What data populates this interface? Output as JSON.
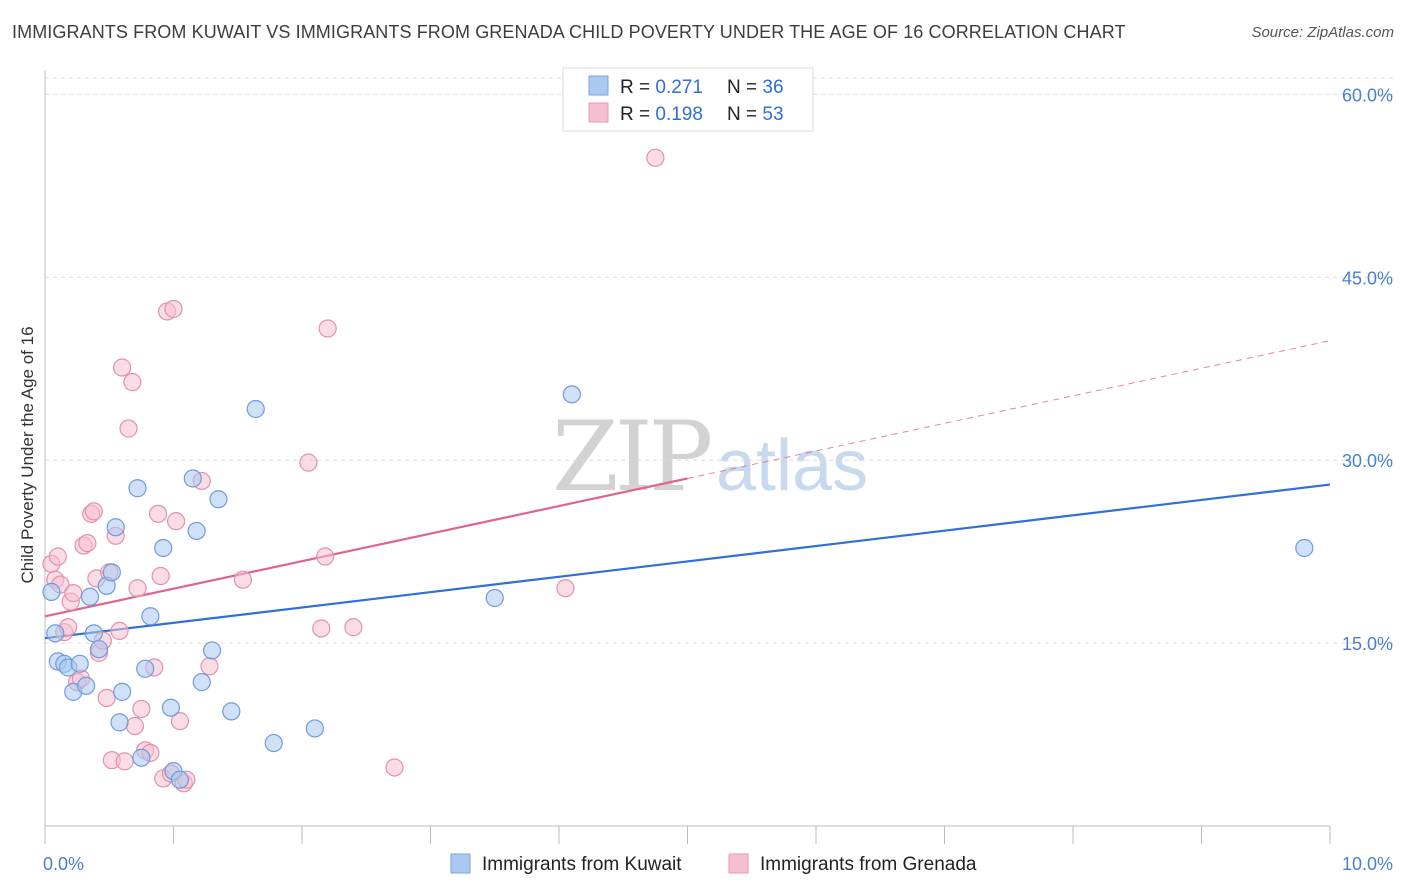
{
  "title": "IMMIGRANTS FROM KUWAIT VS IMMIGRANTS FROM GRENADA CHILD POVERTY UNDER THE AGE OF 16 CORRELATION CHART",
  "source": "Source: ZipAtlas.com",
  "watermark": {
    "zip": "ZIP",
    "atlas": "atlas"
  },
  "colors": {
    "kuwait": "#2f6fd6",
    "grenada": "#e0638f",
    "kuwait_fill": "#aac8f0",
    "grenada_fill": "#f6bfd0",
    "grid": "#d8d8d8"
  },
  "legend": {
    "rows": [
      {
        "r_label": "R = ",
        "r_value": "0.271",
        "n_label": "N = ",
        "n_value": "36"
      },
      {
        "r_label": "R = ",
        "r_value": "0.198",
        "n_label": "N = ",
        "n_value": "53"
      }
    ]
  },
  "bottom_legend": [
    "Immigrants from Kuwait",
    "Immigrants from Grenada"
  ],
  "chart_data": {
    "type": "scatter",
    "title": "IMMIGRANTS FROM KUWAIT VS IMMIGRANTS FROM GRENADA CHILD POVERTY UNDER THE AGE OF 16 CORRELATION CHART",
    "xlabel": "",
    "ylabel": "Child Poverty Under the Age of 16",
    "xlim": [
      0,
      10
    ],
    "ylim": [
      0,
      62
    ],
    "x_tick_labels": [
      "0.0%",
      "10.0%"
    ],
    "y_ticks": [
      15,
      30,
      45,
      60
    ],
    "y_tick_labels": [
      "15.0%",
      "30.0%",
      "45.0%",
      "60.0%"
    ],
    "series": [
      {
        "name": "Immigrants from Kuwait",
        "R": 0.271,
        "N": 36,
        "trend": {
          "x0": 0,
          "y0": 15.4,
          "x1": 10,
          "y1": 28.0,
          "dashed_from": null
        },
        "points": [
          [
            0.05,
            19.2
          ],
          [
            0.08,
            15.8
          ],
          [
            0.1,
            13.5
          ],
          [
            0.15,
            13.3
          ],
          [
            0.18,
            13.0
          ],
          [
            0.22,
            11.0
          ],
          [
            0.27,
            13.3
          ],
          [
            0.32,
            11.5
          ],
          [
            0.35,
            18.8
          ],
          [
            0.38,
            15.8
          ],
          [
            0.42,
            14.5
          ],
          [
            0.48,
            19.7
          ],
          [
            0.52,
            20.8
          ],
          [
            0.55,
            24.5
          ],
          [
            0.58,
            8.5
          ],
          [
            0.6,
            11.0
          ],
          [
            0.72,
            27.7
          ],
          [
            0.75,
            5.6
          ],
          [
            0.78,
            12.9
          ],
          [
            0.82,
            17.2
          ],
          [
            0.92,
            22.8
          ],
          [
            0.98,
            9.7
          ],
          [
            1.0,
            4.5
          ],
          [
            1.05,
            3.8
          ],
          [
            1.15,
            28.5
          ],
          [
            1.18,
            24.2
          ],
          [
            1.22,
            11.8
          ],
          [
            1.3,
            14.4
          ],
          [
            1.35,
            26.8
          ],
          [
            1.45,
            9.4
          ],
          [
            1.64,
            34.2
          ],
          [
            1.78,
            6.8
          ],
          [
            2.1,
            8.0
          ],
          [
            3.5,
            18.7
          ],
          [
            4.1,
            35.4
          ],
          [
            9.8,
            22.8
          ]
        ]
      },
      {
        "name": "Immigrants from Grenada",
        "R": 0.198,
        "N": 53,
        "trend": {
          "x0": 0,
          "y0": 17.2,
          "x1": 10,
          "y1": 39.8,
          "dashed_from": 5.0
        },
        "points": [
          [
            0.05,
            21.5
          ],
          [
            0.08,
            20.2
          ],
          [
            0.1,
            22.1
          ],
          [
            0.12,
            19.8
          ],
          [
            0.15,
            15.9
          ],
          [
            0.18,
            16.3
          ],
          [
            0.2,
            18.4
          ],
          [
            0.22,
            19.1
          ],
          [
            0.25,
            11.8
          ],
          [
            0.28,
            12.1
          ],
          [
            0.3,
            23.0
          ],
          [
            0.33,
            23.2
          ],
          [
            0.36,
            25.6
          ],
          [
            0.38,
            25.8
          ],
          [
            0.4,
            20.3
          ],
          [
            0.42,
            14.2
          ],
          [
            0.45,
            15.2
          ],
          [
            0.48,
            10.5
          ],
          [
            0.5,
            20.8
          ],
          [
            0.52,
            5.4
          ],
          [
            0.55,
            23.8
          ],
          [
            0.58,
            16.0
          ],
          [
            0.6,
            37.6
          ],
          [
            0.62,
            5.3
          ],
          [
            0.65,
            32.6
          ],
          [
            0.68,
            36.4
          ],
          [
            0.7,
            8.2
          ],
          [
            0.72,
            19.5
          ],
          [
            0.75,
            9.6
          ],
          [
            0.78,
            6.2
          ],
          [
            0.82,
            6.0
          ],
          [
            0.85,
            13.0
          ],
          [
            0.88,
            25.6
          ],
          [
            0.9,
            20.5
          ],
          [
            0.92,
            3.9
          ],
          [
            0.95,
            42.2
          ],
          [
            0.98,
            4.3
          ],
          [
            1.0,
            42.4
          ],
          [
            1.02,
            25.0
          ],
          [
            1.05,
            8.6
          ],
          [
            1.08,
            3.5
          ],
          [
            1.1,
            3.8
          ],
          [
            1.22,
            28.3
          ],
          [
            1.28,
            13.1
          ],
          [
            1.54,
            20.2
          ],
          [
            2.05,
            29.8
          ],
          [
            2.15,
            16.2
          ],
          [
            2.18,
            22.1
          ],
          [
            2.2,
            40.8
          ],
          [
            2.4,
            16.3
          ],
          [
            2.72,
            4.8
          ],
          [
            4.05,
            19.5
          ],
          [
            4.75,
            54.8
          ]
        ]
      }
    ]
  }
}
